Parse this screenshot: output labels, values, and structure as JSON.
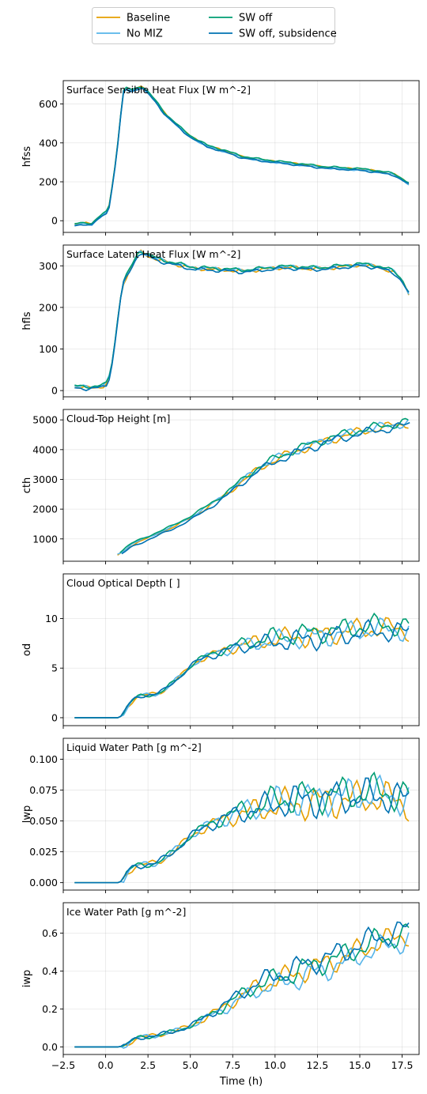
{
  "legend": {
    "entries": [
      {
        "label": "Baseline",
        "color": "#E69F00"
      },
      {
        "label": "No MIZ",
        "color": "#56B4E9"
      },
      {
        "label": "SW off",
        "color": "#009E73"
      },
      {
        "label": "SW off, subsidence",
        "color": "#0072B2"
      }
    ],
    "placement": "top-center",
    "columns": 2
  },
  "xaxis": {
    "label": "Time (h)",
    "xlim": [
      -2.5,
      18.5
    ],
    "ticks": [
      -2.5,
      0.0,
      2.5,
      5.0,
      7.5,
      10.0,
      12.5,
      15.0,
      17.5
    ],
    "tick_labels": [
      "−2.5",
      "0.0",
      "2.5",
      "5.0",
      "7.5",
      "10.0",
      "12.5",
      "15.0",
      "17.5"
    ]
  },
  "chart_data": [
    {
      "type": "line",
      "title": "Surface Sensible Heat Flux [W m^-2]",
      "ylabel": "hfss",
      "ylim": [
        -60,
        720
      ],
      "yticks": [
        0,
        200,
        400,
        600
      ],
      "ytick_labels": [
        "0",
        "200",
        "400",
        "600"
      ],
      "grid": true,
      "base": [
        [
          -1.83,
          -20
        ],
        [
          -1.5,
          -15
        ],
        [
          -1.17,
          -12
        ],
        [
          -0.83,
          -18
        ],
        [
          -0.5,
          10
        ],
        [
          -0.17,
          30
        ],
        [
          0.17,
          55
        ],
        [
          0.5,
          240
        ],
        [
          0.83,
          480
        ],
        [
          1.0,
          660
        ],
        [
          1.17,
          680
        ],
        [
          1.5,
          670
        ],
        [
          1.83,
          680
        ],
        [
          2.17,
          690
        ],
        [
          2.5,
          660
        ],
        [
          3,
          610
        ],
        [
          3.5,
          550
        ],
        [
          4,
          510
        ],
        [
          4.5,
          470
        ],
        [
          5,
          435
        ],
        [
          5.5,
          410
        ],
        [
          6,
          385
        ],
        [
          7,
          360
        ],
        [
          8,
          330
        ],
        [
          9,
          315
        ],
        [
          10,
          305
        ],
        [
          11,
          295
        ],
        [
          12,
          285
        ],
        [
          13,
          275
        ],
        [
          14,
          270
        ],
        [
          15,
          265
        ],
        [
          16,
          255
        ],
        [
          17,
          240
        ],
        [
          17.5,
          215
        ],
        [
          18,
          185
        ]
      ],
      "amp": 5,
      "series": [
        {
          "name": "Baseline",
          "color": "#E69F00",
          "offset": 0,
          "phase": 0.0,
          "start": -1.83
        },
        {
          "name": "No MIZ",
          "color": "#56B4E9",
          "offset": -4,
          "phase": 1.3,
          "start": -1.83
        },
        {
          "name": "SW off",
          "color": "#009E73",
          "offset": 3,
          "phase": 2.4,
          "start": -1.83
        },
        {
          "name": "SW off, subsidence",
          "color": "#0072B2",
          "offset": -6,
          "phase": 3.7,
          "start": -1.83
        }
      ]
    },
    {
      "type": "line",
      "title": "Surface Latent Heat Flux [W m^-2]",
      "ylabel": "hfls",
      "ylim": [
        -15,
        350
      ],
      "yticks": [
        0,
        100,
        200,
        300
      ],
      "ytick_labels": [
        "0",
        "100",
        "200",
        "300"
      ],
      "grid": true,
      "base": [
        [
          -1.83,
          8
        ],
        [
          -1.5,
          7
        ],
        [
          -1.0,
          7
        ],
        [
          -0.5,
          8
        ],
        [
          0.0,
          11
        ],
        [
          0.2,
          30
        ],
        [
          0.4,
          70
        ],
        [
          0.6,
          130
        ],
        [
          0.8,
          200
        ],
        [
          1.0,
          255
        ],
        [
          1.5,
          295
        ],
        [
          2.0,
          335
        ],
        [
          2.5,
          325
        ],
        [
          3,
          315
        ],
        [
          4,
          305
        ],
        [
          5,
          295
        ],
        [
          6,
          292
        ],
        [
          7,
          290
        ],
        [
          8,
          287
        ],
        [
          9,
          290
        ],
        [
          10,
          295
        ],
        [
          11,
          296
        ],
        [
          12,
          293
        ],
        [
          13,
          294
        ],
        [
          14,
          298
        ],
        [
          15,
          302
        ],
        [
          16,
          298
        ],
        [
          17,
          285
        ],
        [
          17.5,
          265
        ],
        [
          18,
          225
        ]
      ],
      "amp": 5,
      "series": [
        {
          "name": "Baseline",
          "color": "#E69F00",
          "offset": 0,
          "phase": 0.0,
          "start": -1.83
        },
        {
          "name": "No MIZ",
          "color": "#56B4E9",
          "offset": 2,
          "phase": 1.1,
          "start": -1.83
        },
        {
          "name": "SW off",
          "color": "#009E73",
          "offset": 3,
          "phase": 2.2,
          "start": -1.83
        },
        {
          "name": "SW off, subsidence",
          "color": "#0072B2",
          "offset": -2,
          "phase": 3.3,
          "start": -1.83
        }
      ]
    },
    {
      "type": "line",
      "title": "Cloud-Top Height [m]",
      "ylabel": "cth",
      "ylim": [
        250,
        5350
      ],
      "yticks": [
        1000,
        2000,
        3000,
        4000,
        5000
      ],
      "ytick_labels": [
        "1000",
        "2000",
        "3000",
        "4000",
        "5000"
      ],
      "grid": true,
      "base": [
        [
          0.7,
          450
        ],
        [
          1.0,
          560
        ],
        [
          1.5,
          780
        ],
        [
          2,
          910
        ],
        [
          3,
          1150
        ],
        [
          4,
          1400
        ],
        [
          5,
          1700
        ],
        [
          6,
          2050
        ],
        [
          7,
          2450
        ],
        [
          8,
          2900
        ],
        [
          9,
          3350
        ],
        [
          10,
          3650
        ],
        [
          11,
          3900
        ],
        [
          12,
          4100
        ],
        [
          13,
          4300
        ],
        [
          14,
          4450
        ],
        [
          15,
          4600
        ],
        [
          16,
          4700
        ],
        [
          17,
          4800
        ],
        [
          18,
          4900
        ]
      ],
      "amp": 100,
      "series": [
        {
          "name": "Baseline",
          "color": "#E69F00",
          "offset": 0,
          "phase": 0.0,
          "start": 0.7
        },
        {
          "name": "No MIZ",
          "color": "#56B4E9",
          "offset": 30,
          "phase": 1.4,
          "start": 0.7
        },
        {
          "name": "SW off",
          "color": "#009E73",
          "offset": 60,
          "phase": 2.6,
          "start": 0.85
        },
        {
          "name": "SW off, subsidence",
          "color": "#0072B2",
          "offset": -60,
          "phase": 3.9,
          "start": 0.95
        }
      ]
    },
    {
      "type": "line",
      "title": "Cloud Optical Depth [ ]",
      "ylabel": "od",
      "ylim": [
        -0.8,
        14.5
      ],
      "yticks": [
        0,
        5,
        10
      ],
      "ytick_labels": [
        "0",
        "5",
        "10"
      ],
      "grid": true,
      "base": [
        [
          -1.83,
          0
        ],
        [
          0.8,
          0
        ],
        [
          1.0,
          0.3
        ],
        [
          1.3,
          1.2
        ],
        [
          1.7,
          1.9
        ],
        [
          2,
          2.2
        ],
        [
          3,
          2.4
        ],
        [
          3.5,
          2.8
        ],
        [
          4,
          3.6
        ],
        [
          4.5,
          4.3
        ],
        [
          5,
          5.2
        ],
        [
          5.5,
          5.8
        ],
        [
          6,
          6.2
        ],
        [
          7,
          6.8
        ],
        [
          8,
          7.3
        ],
        [
          9,
          7.6
        ],
        [
          10,
          7.9
        ],
        [
          11,
          8.1
        ],
        [
          12,
          8.2
        ],
        [
          13,
          8.4
        ],
        [
          14,
          8.6
        ],
        [
          15,
          8.9
        ],
        [
          16,
          9.0
        ],
        [
          17,
          9.0
        ],
        [
          18,
          8.8
        ]
      ],
      "amp": 0.7,
      "series": [
        {
          "name": "Baseline",
          "color": "#E69F00",
          "offset": 0,
          "phase": 0.0,
          "start": -1.83
        },
        {
          "name": "No MIZ",
          "color": "#56B4E9",
          "offset": -0.1,
          "phase": 1.2,
          "start": -1.83
        },
        {
          "name": "SW off",
          "color": "#009E73",
          "offset": 0.3,
          "phase": 2.5,
          "start": -1.83
        },
        {
          "name": "SW off, subsidence",
          "color": "#0072B2",
          "offset": -0.3,
          "phase": 3.8,
          "start": -1.83
        }
      ]
    },
    {
      "type": "line",
      "title": "Liquid Water Path [g m^-2]",
      "ylabel": "lwp",
      "ylim": [
        -0.006,
        0.117
      ],
      "yticks": [
        0.0,
        0.025,
        0.05,
        0.075,
        0.1
      ],
      "ytick_labels": [
        "0.000",
        "0.025",
        "0.050",
        "0.075",
        "0.100"
      ],
      "grid": true,
      "base": [
        [
          -1.83,
          0
        ],
        [
          0.8,
          0
        ],
        [
          1.0,
          0.002
        ],
        [
          1.3,
          0.009
        ],
        [
          1.7,
          0.013
        ],
        [
          2,
          0.014
        ],
        [
          3,
          0.016
        ],
        [
          3.5,
          0.02
        ],
        [
          4,
          0.025
        ],
        [
          4.5,
          0.031
        ],
        [
          5,
          0.038
        ],
        [
          5.5,
          0.042
        ],
        [
          6,
          0.046
        ],
        [
          7,
          0.052
        ],
        [
          8,
          0.057
        ],
        [
          9,
          0.06
        ],
        [
          10,
          0.064
        ],
        [
          11,
          0.066
        ],
        [
          12,
          0.067
        ],
        [
          13,
          0.068
        ],
        [
          14,
          0.069
        ],
        [
          15,
          0.07
        ],
        [
          16,
          0.071
        ],
        [
          17,
          0.069
        ],
        [
          18,
          0.066
        ]
      ],
      "amp": 0.009,
      "series": [
        {
          "name": "Baseline",
          "color": "#E69F00",
          "offset": -0.002,
          "phase": 0.0,
          "start": -1.83
        },
        {
          "name": "No MIZ",
          "color": "#56B4E9",
          "offset": 0.001,
          "phase": 1.5,
          "start": -1.83
        },
        {
          "name": "SW off",
          "color": "#009E73",
          "offset": 0.003,
          "phase": 2.7,
          "start": -1.83
        },
        {
          "name": "SW off, subsidence",
          "color": "#0072B2",
          "offset": 0.0,
          "phase": 4.0,
          "start": -1.83
        }
      ]
    },
    {
      "type": "line",
      "title": "Ice Water Path [g m^-2]",
      "ylabel": "iwp",
      "ylim": [
        -0.04,
        0.76
      ],
      "yticks": [
        0.0,
        0.2,
        0.4,
        0.6
      ],
      "ytick_labels": [
        "0.0",
        "0.2",
        "0.4",
        "0.6"
      ],
      "grid": true,
      "base": [
        [
          -1.83,
          0
        ],
        [
          0.8,
          0
        ],
        [
          1.2,
          0.01
        ],
        [
          1.7,
          0.04
        ],
        [
          2,
          0.05
        ],
        [
          3,
          0.06
        ],
        [
          4,
          0.08
        ],
        [
          5,
          0.11
        ],
        [
          6,
          0.16
        ],
        [
          7,
          0.21
        ],
        [
          8,
          0.27
        ],
        [
          9,
          0.32
        ],
        [
          10,
          0.35
        ],
        [
          11,
          0.38
        ],
        [
          12,
          0.41
        ],
        [
          13,
          0.44
        ],
        [
          14,
          0.47
        ],
        [
          15,
          0.51
        ],
        [
          16,
          0.55
        ],
        [
          17,
          0.57
        ],
        [
          18,
          0.6
        ]
      ],
      "amp": 0.04,
      "series": [
        {
          "name": "Baseline",
          "color": "#E69F00",
          "offset": 0,
          "phase": 0.0,
          "start": -1.83
        },
        {
          "name": "No MIZ",
          "color": "#56B4E9",
          "offset": -0.03,
          "phase": 1.3,
          "start": -1.83
        },
        {
          "name": "SW off",
          "color": "#009E73",
          "offset": 0.01,
          "phase": 2.5,
          "start": -1.83
        },
        {
          "name": "SW off, subsidence",
          "color": "#0072B2",
          "offset": 0.03,
          "phase": 3.8,
          "start": -1.83
        }
      ]
    }
  ]
}
